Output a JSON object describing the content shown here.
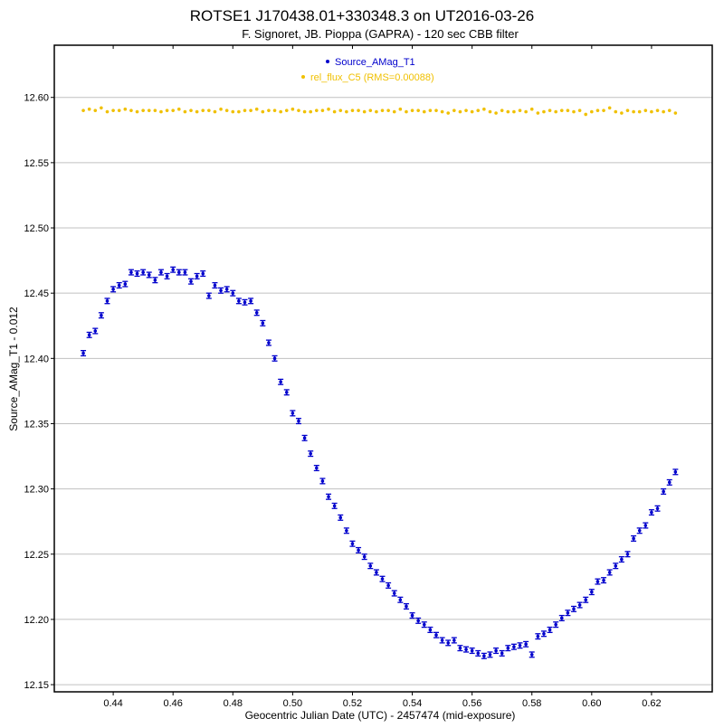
{
  "chart_data": {
    "type": "scatter",
    "title": "ROTSE1 J170438.01+330348.3 on UT2016-03-26",
    "subtitle": "F. Signoret, JB. Pioppa (GAPRA) - 120 sec CBB filter",
    "xlabel": "Geocentric Julian Date (UTC) - 2457474 (mid-exposure)",
    "ylabel": "Source_AMag_T1 - 0.012",
    "xlim": [
      0.4203,
      0.6403
    ],
    "ylim": [
      12.1445,
      12.64
    ],
    "xticks": [
      "0.44",
      "0.46",
      "0.48",
      "0.50",
      "0.52",
      "0.54",
      "0.56",
      "0.58",
      "0.60",
      "0.62"
    ],
    "yticks": [
      "12.15",
      "12.20",
      "12.25",
      "12.30",
      "12.35",
      "12.40",
      "12.45",
      "12.50",
      "12.55",
      "12.60"
    ],
    "grid": "horizontal",
    "legend_position": "top-center",
    "x": [
      0.43,
      0.432,
      0.434,
      0.436,
      0.438,
      0.44,
      0.442,
      0.444,
      0.446,
      0.448,
      0.45,
      0.452,
      0.454,
      0.456,
      0.458,
      0.46,
      0.462,
      0.464,
      0.466,
      0.468,
      0.47,
      0.472,
      0.474,
      0.476,
      0.478,
      0.48,
      0.482,
      0.484,
      0.486,
      0.488,
      0.49,
      0.492,
      0.494,
      0.496,
      0.498,
      0.5,
      0.502,
      0.504,
      0.506,
      0.508,
      0.51,
      0.512,
      0.514,
      0.516,
      0.518,
      0.52,
      0.522,
      0.524,
      0.526,
      0.528,
      0.53,
      0.532,
      0.534,
      0.536,
      0.538,
      0.54,
      0.542,
      0.544,
      0.546,
      0.548,
      0.55,
      0.552,
      0.554,
      0.556,
      0.558,
      0.56,
      0.562,
      0.564,
      0.566,
      0.568,
      0.57,
      0.572,
      0.574,
      0.576,
      0.578,
      0.58,
      0.582,
      0.584,
      0.586,
      0.588,
      0.59,
      0.592,
      0.594,
      0.596,
      0.598,
      0.6,
      0.602,
      0.604,
      0.606,
      0.608,
      0.61,
      0.612,
      0.614,
      0.616,
      0.618,
      0.62,
      0.622,
      0.624,
      0.626,
      0.628
    ],
    "series": [
      {
        "name": "Source_AMag_T1",
        "color": "#0000cc",
        "error": 0.002,
        "values": [
          12.404,
          12.418,
          12.421,
          12.433,
          12.444,
          12.453,
          12.456,
          12.457,
          12.466,
          12.465,
          12.466,
          12.464,
          12.46,
          12.466,
          12.463,
          12.468,
          12.466,
          12.466,
          12.459,
          12.463,
          12.465,
          12.448,
          12.456,
          12.452,
          12.453,
          12.45,
          12.444,
          12.443,
          12.444,
          12.435,
          12.427,
          12.412,
          12.4,
          12.382,
          12.374,
          12.358,
          12.352,
          12.339,
          12.327,
          12.316,
          12.306,
          12.294,
          12.287,
          12.278,
          12.268,
          12.258,
          12.253,
          12.248,
          12.241,
          12.236,
          12.231,
          12.226,
          12.22,
          12.215,
          12.21,
          12.203,
          12.199,
          12.196,
          12.192,
          12.188,
          12.184,
          12.182,
          12.184,
          12.178,
          12.177,
          12.176,
          12.174,
          12.172,
          12.173,
          12.176,
          12.174,
          12.178,
          12.179,
          12.18,
          12.181,
          12.173,
          12.187,
          12.189,
          12.192,
          12.196,
          12.201,
          12.205,
          12.208,
          12.211,
          12.215,
          12.221,
          12.229,
          12.23,
          12.236,
          12.241,
          12.246,
          12.25,
          12.262,
          12.268,
          12.272,
          12.282,
          12.285,
          12.298,
          12.305,
          12.313
        ]
      },
      {
        "name": "rel_flux_C5 (RMS=0.00088)",
        "color": "#f0c000",
        "values": [
          12.59,
          12.591,
          12.59,
          12.592,
          12.589,
          12.59,
          12.59,
          12.591,
          12.59,
          12.589,
          12.59,
          12.59,
          12.59,
          12.589,
          12.59,
          12.59,
          12.591,
          12.589,
          12.59,
          12.589,
          12.59,
          12.59,
          12.589,
          12.591,
          12.59,
          12.589,
          12.589,
          12.59,
          12.59,
          12.591,
          12.589,
          12.59,
          12.59,
          12.589,
          12.59,
          12.591,
          12.59,
          12.589,
          12.589,
          12.59,
          12.59,
          12.591,
          12.589,
          12.59,
          12.589,
          12.59,
          12.59,
          12.589,
          12.59,
          12.589,
          12.59,
          12.59,
          12.589,
          12.591,
          12.589,
          12.59,
          12.59,
          12.589,
          12.59,
          12.59,
          12.589,
          12.588,
          12.59,
          12.589,
          12.59,
          12.589,
          12.59,
          12.591,
          12.589,
          12.588,
          12.59,
          12.589,
          12.589,
          12.59,
          12.589,
          12.591,
          12.588,
          12.589,
          12.59,
          12.589,
          12.59,
          12.59,
          12.589,
          12.59,
          12.587,
          12.589,
          12.59,
          12.59,
          12.592,
          12.589,
          12.588,
          12.59,
          12.589,
          12.589,
          12.59,
          12.589,
          12.59,
          12.589,
          12.59,
          12.588
        ]
      }
    ]
  }
}
